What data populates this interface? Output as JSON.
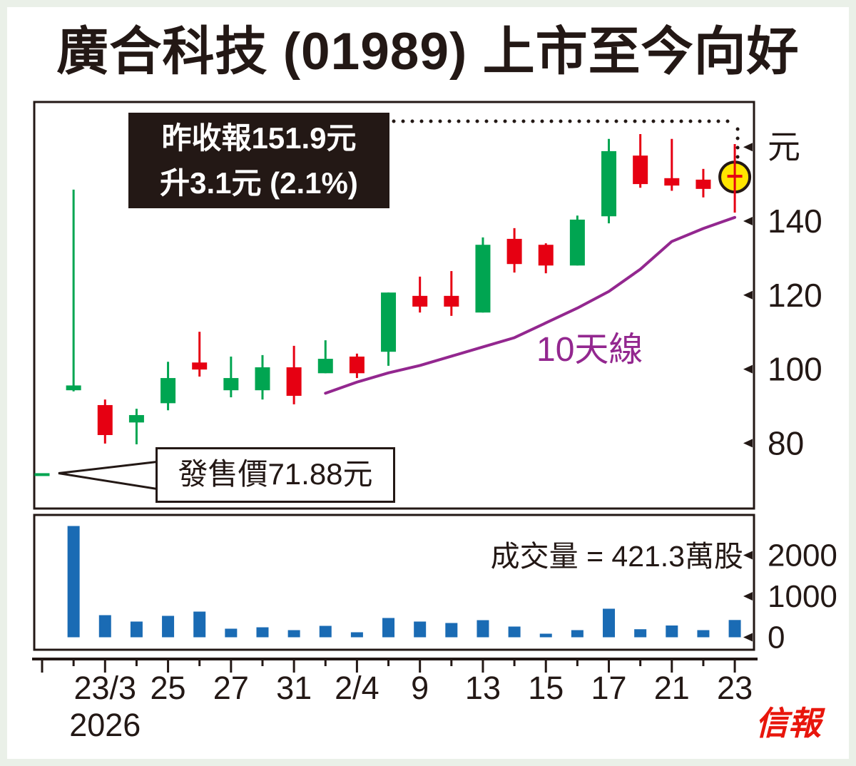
{
  "title": "廣合科技 (01989) 上市至今向好",
  "annotation": {
    "line1": "昨收報151.9元",
    "line2": "升3.1元 (2.1%)"
  },
  "offer_callout": {
    "label": "發售價71.88元",
    "price": 71.88
  },
  "ma_label": "10天線",
  "volume_label": "成交量 = 421.3萬股",
  "logo": "信報",
  "colors": {
    "ink": "#231815",
    "up_green": "#00a551",
    "down_red": "#e60012",
    "volume_blue": "#1a6bb4",
    "ma_purple": "#93278f",
    "highlight_yellow": "#ffe600",
    "panel_white": "#ffffff",
    "frame_green": "#eaf0e8",
    "logo_red": "#e8160c"
  },
  "chart_data": {
    "type": "candlestick+volume",
    "price_unit": "元",
    "volume_unit": "萬股",
    "price_ticks": [
      {
        "label": "元",
        "price": 160
      },
      {
        "label": "140",
        "price": 140
      },
      {
        "label": "120",
        "price": 120
      },
      {
        "label": "100",
        "price": 100
      },
      {
        "label": "80",
        "price": 80
      }
    ],
    "volume_ticks": [
      {
        "label": "2000",
        "value": 2000
      },
      {
        "label": "1000",
        "value": 1000
      },
      {
        "label": "0",
        "value": 0
      }
    ],
    "x_labels": [
      {
        "index": 2,
        "text": "23/3"
      },
      {
        "index": 4,
        "text": "25"
      },
      {
        "index": 6,
        "text": "27"
      },
      {
        "index": 8,
        "text": "31"
      },
      {
        "index": 10,
        "text": "2/4"
      },
      {
        "index": 12,
        "text": "9"
      },
      {
        "index": 14,
        "text": "13"
      },
      {
        "index": 16,
        "text": "15"
      },
      {
        "index": 18,
        "text": "17"
      },
      {
        "index": 20,
        "text": "21"
      },
      {
        "index": 22,
        "text": "23"
      }
    ],
    "year_label": "2026",
    "candles": [
      {
        "o": 71.9,
        "h": 71.9,
        "l": 71.9,
        "c": 71.9,
        "vol": 0,
        "note": "ipo-offer-level"
      },
      {
        "o": 94.3,
        "h": 148.5,
        "l": 94.0,
        "c": 95.6,
        "vol": 2713
      },
      {
        "o": 90.3,
        "h": 91.8,
        "l": 79.9,
        "c": 82.2,
        "vol": 539
      },
      {
        "o": 85.6,
        "h": 89.3,
        "l": 79.7,
        "c": 87.6,
        "vol": 383
      },
      {
        "o": 90.8,
        "h": 102.0,
        "l": 88.9,
        "c": 97.6,
        "vol": 522
      },
      {
        "o": 101.8,
        "h": 110.1,
        "l": 98.0,
        "c": 99.9,
        "vol": 626
      },
      {
        "o": 94.3,
        "h": 103.4,
        "l": 92.4,
        "c": 97.6,
        "vol": 209
      },
      {
        "o": 94.3,
        "h": 103.8,
        "l": 91.8,
        "c": 100.5,
        "vol": 243
      },
      {
        "o": 100.5,
        "h": 106.3,
        "l": 90.5,
        "c": 92.8,
        "vol": 174
      },
      {
        "o": 98.9,
        "h": 107.8,
        "l": 98.9,
        "c": 102.8,
        "vol": 278
      },
      {
        "o": 103.4,
        "h": 104.2,
        "l": 97.6,
        "c": 98.9,
        "vol": 122
      },
      {
        "o": 104.7,
        "h": 120.7,
        "l": 100.9,
        "c": 120.7,
        "vol": 470
      },
      {
        "o": 119.8,
        "h": 125.0,
        "l": 115.3,
        "c": 116.9,
        "vol": 383
      },
      {
        "o": 119.8,
        "h": 126.5,
        "l": 114.4,
        "c": 116.9,
        "vol": 348
      },
      {
        "o": 115.3,
        "h": 135.6,
        "l": 115.3,
        "c": 133.6,
        "vol": 417
      },
      {
        "o": 135.2,
        "h": 138.1,
        "l": 126.1,
        "c": 128.4,
        "vol": 261
      },
      {
        "o": 133.6,
        "h": 134.0,
        "l": 125.9,
        "c": 128.0,
        "vol": 87
      },
      {
        "o": 128.0,
        "h": 141.5,
        "l": 128.0,
        "c": 140.4,
        "vol": 174
      },
      {
        "o": 141.3,
        "h": 162.2,
        "l": 139.4,
        "c": 158.9,
        "vol": 696
      },
      {
        "o": 157.7,
        "h": 163.5,
        "l": 149.0,
        "c": 150.0,
        "vol": 196
      },
      {
        "o": 151.6,
        "h": 162.2,
        "l": 148.2,
        "c": 149.6,
        "vol": 287
      },
      {
        "o": 151.2,
        "h": 154.1,
        "l": 146.4,
        "c": 148.7,
        "vol": 174
      },
      {
        "o": 152.5,
        "h": 160.8,
        "l": 142.3,
        "c": 151.9,
        "vol": 421,
        "highlight": true
      }
    ],
    "ma10": {
      "start_index": 9,
      "values": [
        93.5,
        96.5,
        99,
        101,
        103.5,
        106,
        108.5,
        112.5,
        116.5,
        121,
        127,
        134.5,
        138,
        141
      ]
    }
  }
}
